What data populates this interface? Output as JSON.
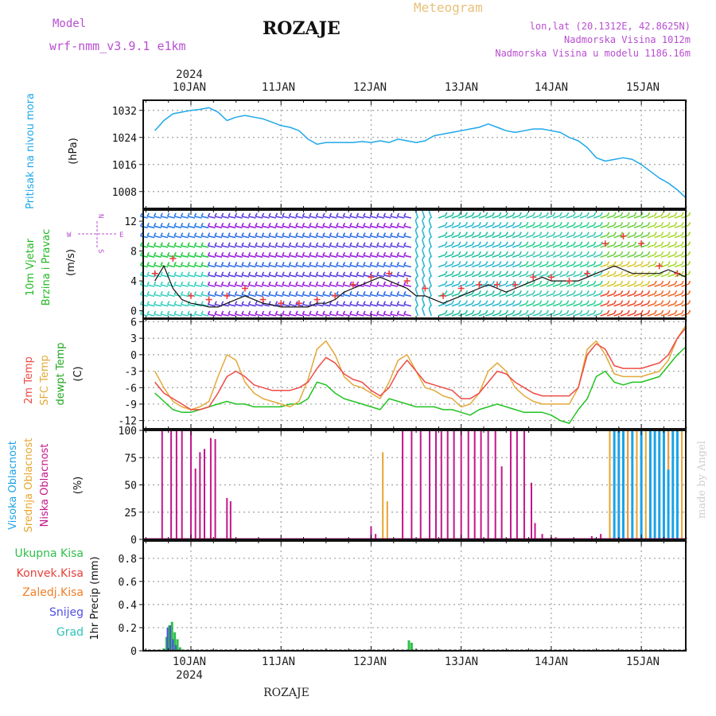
{
  "header": {
    "model_label": "Model",
    "model_name": "wrf-nmm_v3.9.1 e1km",
    "station_title": "ROZAJE",
    "meteogram_label": "Meteogram",
    "lonlat": "lon,lat (20.1312E, 42.8625N)",
    "altitude": "Nadmorska Visina 1012m",
    "model_altitude": "Nadmorska Visina u modelu 1186.16m"
  },
  "footer": {
    "station": "ROZAJE",
    "watermark": "made by Angel"
  },
  "time_axis": {
    "year": "2024",
    "days": [
      "10JAN",
      "11JAN",
      "12JAN",
      "13JAN",
      "14JAN",
      "15JAN"
    ]
  },
  "wind_compass": {
    "n": "N",
    "s": "S",
    "w": "W",
    "e": "E"
  },
  "colors": {
    "pressure": "#1ea8ea",
    "temp2m": "#ee4b45",
    "sfc_temp": "#e3a93a",
    "dewpt": "#22c322",
    "high_cloud": "#1aa3e8",
    "mid_cloud": "#e8a62c",
    "low_cloud": "#c4168a",
    "total_precip": "#2ebf4a",
    "conv_precip": "#e8403a",
    "frozen": "#f07f2a",
    "snow": "#5050e0",
    "grad": "#2fc2b8",
    "wind_speed_line": "#111111",
    "gust_marker": "#e83a3a",
    "grid": "#a0a0a0",
    "model_label": "#b84ed0",
    "meteogram": "#e8c07a"
  },
  "chart_data": [
    {
      "type": "line",
      "title": "Pritisak na nivou mora",
      "ylabel": "(hPa)",
      "ylim": [
        1003,
        1035
      ],
      "yticks": [
        "1008",
        "1016",
        "1024",
        "1032"
      ],
      "ytick_values": [
        1008,
        1016,
        1024,
        1032
      ],
      "grid": true,
      "series": [
        {
          "name": "Pritisak na nivou mora",
          "x": [
            9.6,
            9.7,
            9.8,
            9.9,
            10.0,
            10.1,
            10.2,
            10.3,
            10.4,
            10.5,
            10.6,
            10.7,
            10.8,
            10.9,
            11.0,
            11.1,
            11.2,
            11.3,
            11.4,
            11.5,
            11.6,
            11.7,
            11.8,
            11.9,
            12.0,
            12.1,
            12.2,
            12.3,
            12.4,
            12.5,
            12.6,
            12.7,
            12.8,
            12.9,
            13.0,
            13.1,
            13.2,
            13.3,
            13.4,
            13.5,
            13.6,
            13.7,
            13.8,
            13.9,
            14.0,
            14.1,
            14.2,
            14.3,
            14.4,
            14.5,
            14.6,
            14.7,
            14.8,
            14.9,
            15.0,
            15.1,
            15.2,
            15.3,
            15.4,
            15.5
          ],
          "values": [
            1026,
            1029,
            1031,
            1031.5,
            1032,
            1032.3,
            1032.8,
            1031.5,
            1029,
            1030,
            1030.5,
            1030,
            1029.5,
            1028.5,
            1027.5,
            1027,
            1026,
            1023.5,
            1022,
            1022.5,
            1022.5,
            1022.5,
            1022.5,
            1022.8,
            1022.5,
            1023,
            1022.5,
            1023.5,
            1023,
            1022.5,
            1023,
            1024.5,
            1025,
            1025.5,
            1026,
            1026.5,
            1027,
            1028,
            1027,
            1026,
            1025.5,
            1026,
            1026.5,
            1026.5,
            1026,
            1025.5,
            1024,
            1023,
            1021,
            1018,
            1017,
            1017.5,
            1018,
            1017.5,
            1016,
            1014,
            1012,
            1010.5,
            1008.5,
            1006
          ]
        }
      ]
    },
    {
      "type": "line",
      "title": "10m Vjetar Brzina i Pravac",
      "ylabel": "(m/s)",
      "ylim": [
        -1,
        13.5
      ],
      "yticks": [
        "0",
        "4",
        "8",
        "12"
      ],
      "ytick_values": [
        0,
        4,
        8,
        12
      ],
      "grid": false,
      "series": [
        {
          "name": "Brzina",
          "x": [
            9.6,
            9.7,
            9.8,
            9.9,
            10.0,
            10.1,
            10.2,
            10.3,
            10.4,
            10.5,
            10.6,
            10.7,
            10.8,
            10.9,
            11.0,
            11.1,
            11.2,
            11.3,
            11.4,
            11.5,
            11.6,
            11.7,
            11.8,
            11.9,
            12.0,
            12.1,
            12.2,
            12.3,
            12.4,
            12.5,
            12.6,
            12.7,
            12.8,
            12.9,
            13.0,
            13.1,
            13.2,
            13.3,
            13.4,
            13.5,
            13.6,
            13.7,
            13.8,
            13.9,
            14.0,
            14.1,
            14.2,
            14.3,
            14.4,
            14.5,
            14.6,
            14.7,
            14.8,
            14.9,
            15.0,
            15.1,
            15.2,
            15.3,
            15.4,
            15.5
          ],
          "values": [
            4,
            6,
            3,
            1.5,
            1,
            0.8,
            0.5,
            0.5,
            1,
            1.5,
            2,
            1.5,
            1,
            0.8,
            0.5,
            0.5,
            0.5,
            0.5,
            1,
            1,
            1.5,
            2.5,
            3,
            3.5,
            4,
            4.5,
            4,
            3.5,
            3,
            2,
            2,
            1.5,
            1,
            1.5,
            2,
            2.5,
            3,
            3.5,
            3,
            2.5,
            3,
            3.5,
            4,
            4.5,
            4,
            4,
            4,
            4,
            4.5,
            5,
            5.5,
            6,
            5.5,
            5,
            5,
            5,
            5,
            5.5,
            5,
            4.5
          ]
        },
        {
          "name": "Udari",
          "x": [
            9.6,
            9.8,
            10.0,
            10.2,
            10.4,
            10.6,
            10.8,
            11.0,
            11.2,
            11.4,
            11.6,
            11.8,
            12.0,
            12.2,
            12.4,
            12.6,
            12.8,
            13.0,
            13.2,
            13.4,
            13.6,
            13.8,
            14.0,
            14.2,
            14.4,
            14.6,
            14.8,
            15.0,
            15.2,
            15.4
          ],
          "values": [
            5,
            7,
            2,
            1.5,
            2,
            3,
            1.5,
            1,
            1,
            1.5,
            2,
            3.5,
            4.5,
            5,
            4,
            3,
            2,
            3,
            3.5,
            3.5,
            3.5,
            4.5,
            4.5,
            4,
            5,
            9,
            10,
            9,
            6,
            5
          ]
        }
      ]
    },
    {
      "type": "line",
      "title": "2m Temp / SFC Temp / dewpt Temp",
      "ylabel": "(C)",
      "ylim": [
        -13.5,
        6.5
      ],
      "yticks": [
        "6",
        "3",
        "0",
        "-3",
        "-6",
        "-9",
        "-12"
      ],
      "ytick_values": [
        6,
        3,
        0,
        -3,
        -6,
        -9,
        -12
      ],
      "grid": true,
      "series": [
        {
          "name": "2m Temp",
          "x": [
            9.6,
            9.7,
            9.8,
            9.9,
            10.0,
            10.1,
            10.2,
            10.3,
            10.4,
            10.5,
            10.6,
            10.7,
            10.8,
            10.9,
            11.0,
            11.1,
            11.2,
            11.3,
            11.4,
            11.5,
            11.6,
            11.7,
            11.8,
            11.9,
            12.0,
            12.1,
            12.2,
            12.3,
            12.4,
            12.5,
            12.6,
            12.7,
            12.8,
            12.9,
            13.0,
            13.1,
            13.2,
            13.3,
            13.4,
            13.5,
            13.6,
            13.7,
            13.8,
            13.9,
            14.0,
            14.1,
            14.2,
            14.3,
            14.4,
            14.5,
            14.6,
            14.7,
            14.8,
            14.9,
            15.0,
            15.1,
            15.2,
            15.3,
            15.4,
            15.5
          ],
          "values": [
            -5,
            -7,
            -8,
            -9,
            -10,
            -10,
            -9.5,
            -7,
            -4,
            -3,
            -4,
            -5.5,
            -6,
            -6.5,
            -6.5,
            -6.5,
            -6,
            -5,
            -2.5,
            -0.5,
            -1.5,
            -3.5,
            -4.5,
            -5,
            -6.5,
            -7.5,
            -6,
            -3,
            -1,
            -3,
            -5,
            -5.5,
            -6,
            -6.5,
            -8,
            -8,
            -7,
            -5,
            -3,
            -3.5,
            -5,
            -6,
            -7,
            -7.5,
            -7.5,
            -7.5,
            -7.5,
            -6,
            0,
            2,
            1,
            -2,
            -2.5,
            -2.5,
            -2.5,
            -2,
            -1.5,
            0,
            3,
            5
          ]
        },
        {
          "name": "SFC Temp",
          "x": [
            9.6,
            9.7,
            9.8,
            9.9,
            10.0,
            10.1,
            10.2,
            10.3,
            10.4,
            10.5,
            10.6,
            10.7,
            10.8,
            10.9,
            11.0,
            11.1,
            11.2,
            11.3,
            11.4,
            11.5,
            11.6,
            11.7,
            11.8,
            11.9,
            12.0,
            12.1,
            12.2,
            12.3,
            12.4,
            12.5,
            12.6,
            12.7,
            12.8,
            12.9,
            13.0,
            13.1,
            13.2,
            13.3,
            13.4,
            13.5,
            13.6,
            13.7,
            13.8,
            13.9,
            14.0,
            14.1,
            14.2,
            14.3,
            14.4,
            14.5,
            14.6,
            14.7,
            14.8,
            14.9,
            15.0,
            15.1,
            15.2,
            15.3,
            15.4,
            15.5
          ],
          "values": [
            -3,
            -6,
            -8.5,
            -9.5,
            -10,
            -9.5,
            -8.5,
            -4,
            0,
            -1,
            -5,
            -7,
            -8,
            -8.5,
            -9,
            -9.5,
            -8.5,
            -4.5,
            1,
            2.5,
            0,
            -4,
            -5.5,
            -6,
            -7,
            -8,
            -5,
            -1,
            0,
            -3,
            -6,
            -6.5,
            -7.5,
            -8,
            -9.5,
            -9,
            -7,
            -3,
            -1.5,
            -3,
            -6,
            -7.5,
            -8.5,
            -9,
            -9,
            -9,
            -9,
            -6,
            1,
            2.5,
            0,
            -3.5,
            -4,
            -4,
            -4,
            -3.5,
            -3,
            -1,
            3,
            5.5
          ]
        },
        {
          "name": "dewpt Temp",
          "x": [
            9.6,
            9.7,
            9.8,
            9.9,
            10.0,
            10.1,
            10.2,
            10.3,
            10.4,
            10.5,
            10.6,
            10.7,
            10.8,
            10.9,
            11.0,
            11.1,
            11.2,
            11.3,
            11.4,
            11.5,
            11.6,
            11.7,
            11.8,
            11.9,
            12.0,
            12.1,
            12.2,
            12.3,
            12.4,
            12.5,
            12.6,
            12.7,
            12.8,
            12.9,
            13.0,
            13.1,
            13.2,
            13.3,
            13.4,
            13.5,
            13.6,
            13.7,
            13.8,
            13.9,
            14.0,
            14.1,
            14.2,
            14.3,
            14.4,
            14.5,
            14.6,
            14.7,
            14.8,
            14.9,
            15.0,
            15.1,
            15.2,
            15.3,
            15.4,
            15.5
          ],
          "values": [
            -7,
            -8.5,
            -10,
            -10.5,
            -10.5,
            -10,
            -9.5,
            -9,
            -8.5,
            -9,
            -9,
            -9.5,
            -9.5,
            -9.5,
            -9.5,
            -9,
            -9,
            -8,
            -5,
            -5.5,
            -7,
            -8,
            -8.5,
            -9,
            -9.5,
            -10,
            -8,
            -8.5,
            -9,
            -9.5,
            -9.5,
            -9.5,
            -10,
            -10,
            -10.5,
            -11,
            -10,
            -9.5,
            -9,
            -9.5,
            -10,
            -10.5,
            -10.5,
            -10.5,
            -11,
            -12,
            -12.5,
            -10,
            -8,
            -4,
            -3,
            -5,
            -5.5,
            -5,
            -5,
            -4.5,
            -4,
            -2,
            0,
            1.5
          ]
        }
      ]
    },
    {
      "type": "bar",
      "title": "Visoka / Srednja / Niska Oblacnost",
      "ylabel": "(%)",
      "ylim": [
        0,
        100
      ],
      "yticks": [
        "0",
        "25",
        "50",
        "75",
        "100"
      ],
      "ytick_values": [
        0,
        25,
        50,
        75,
        100
      ],
      "grid": true,
      "series": [
        {
          "name": "Niska Oblacnost",
          "x": [
            9.68,
            9.78,
            9.84,
            9.9,
            10.0,
            10.05,
            10.1,
            10.15,
            10.22,
            10.27,
            10.4,
            10.44,
            11.58,
            11.62,
            12.0,
            12.05,
            12.35,
            12.45,
            12.55,
            12.65,
            12.72,
            12.78,
            12.85,
            12.92,
            13.0,
            13.08,
            13.15,
            13.22,
            13.3,
            13.38,
            13.45,
            13.55,
            13.62,
            13.7,
            13.78,
            13.82,
            13.9,
            14.0,
            14.05,
            14.25,
            14.45,
            14.55,
            14.65,
            14.7,
            14.8,
            14.85,
            14.95,
            15.0,
            15.1,
            15.2,
            15.25,
            15.3,
            15.4
          ],
          "values": [
            100,
            100,
            100,
            100,
            100,
            65,
            80,
            83,
            93,
            92,
            38,
            35,
            1,
            1,
            12,
            5,
            100,
            100,
            100,
            100,
            100,
            100,
            100,
            100,
            100,
            100,
            100,
            100,
            100,
            100,
            67,
            100,
            100,
            100,
            52,
            15,
            5,
            2,
            2,
            1,
            3,
            5,
            10,
            100,
            100,
            100,
            100,
            100,
            100,
            100,
            100,
            100,
            100
          ]
        },
        {
          "name": "Srednja Oblacnost",
          "x": [
            12.13,
            12.18,
            14.65,
            14.7,
            14.75,
            14.8,
            14.85,
            14.9,
            14.95,
            15.0,
            15.05,
            15.1,
            15.15,
            15.2,
            15.25,
            15.3,
            15.35,
            15.4,
            15.45
          ],
          "values": [
            80,
            35,
            100,
            100,
            100,
            100,
            100,
            100,
            100,
            100,
            100,
            100,
            100,
            100,
            100,
            100,
            100,
            100,
            100
          ]
        },
        {
          "name": "Visoka Oblacnost",
          "x": [
            14.7,
            14.75,
            14.8,
            14.9,
            15.0,
            15.1,
            15.15,
            15.2,
            15.25,
            15.3,
            15.35,
            15.4
          ],
          "values": [
            100,
            100,
            100,
            100,
            100,
            100,
            100,
            100,
            100,
            64,
            100,
            100
          ]
        }
      ]
    },
    {
      "type": "bar",
      "title": "1hr Precip",
      "ylabel": "1hr Precip (mm)",
      "ylim": [
        0,
        0.95
      ],
      "yticks": [
        "0",
        "0.2",
        "0.4",
        "0.6",
        "0.8"
      ],
      "ytick_values": [
        0,
        0.2,
        0.4,
        0.6,
        0.8
      ],
      "grid": true,
      "legend": [
        "Ukupna Kisa",
        "Konvek.Kisa",
        "Zaledj.Kisa",
        "Snijeg",
        "Grad"
      ],
      "series": [
        {
          "name": "Ukupna Kisa",
          "x": [
            9.7,
            9.73,
            9.76,
            9.79,
            9.82,
            9.85,
            9.88,
            12.42,
            12.45,
            12.48
          ],
          "values": [
            0.02,
            0.12,
            0.22,
            0.25,
            0.16,
            0.1,
            0.03,
            0.09,
            0.07,
            0.01
          ]
        },
        {
          "name": "Snijeg",
          "x": [
            9.74,
            9.77,
            9.8,
            9.83
          ],
          "values": [
            0.2,
            0.22,
            0.1,
            0.05
          ]
        }
      ]
    }
  ]
}
